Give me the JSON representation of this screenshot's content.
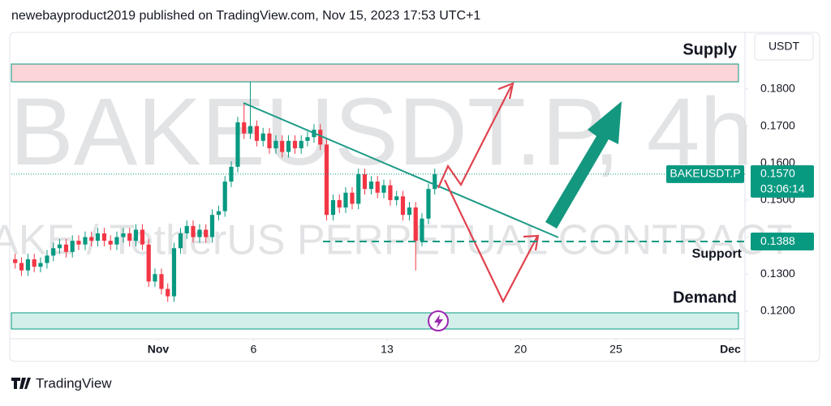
{
  "header": "newebayproduct2019 published on TradingView.com, Nov 15, 2023 17:53 UTC+1",
  "footer": "TradingView",
  "chart_data": {
    "type": "candlestick",
    "symbol_watermark": "BAKEUSDT.P, 4h",
    "description_watermark": "BAKE / TetherUS PERPETUAL CONTRACT",
    "currency": "USDT",
    "symbol_label": "BAKEUSDT.P",
    "countdown": "03:06:14",
    "last_price": {
      "value": 0.157,
      "label": "0.1570"
    },
    "support": 0.1388,
    "annotations": {
      "supply": "Supply",
      "support": "Support",
      "demand": "Demand"
    },
    "up_color": "#089981",
    "down_color": "#f23645",
    "grid": false,
    "xlim": [
      -6.7,
      31.64
    ],
    "xticks": [
      {
        "value": 1,
        "label": "Nov"
      },
      6,
      13,
      20,
      25,
      {
        "value": 31,
        "label": "Dec"
      }
    ],
    "ylim": [
      0.1121,
      0.1953
    ],
    "yticks": [
      {
        "value": 0.12,
        "label": "0.1200"
      },
      {
        "value": 0.13,
        "label": "0.1300"
      },
      {
        "value": 0.14,
        "label": "0.1400"
      },
      {
        "value": 0.15,
        "label": "0.1500"
      },
      {
        "value": 0.16,
        "label": "0.1600"
      },
      {
        "value": 0.17,
        "label": "0.1700"
      },
      {
        "value": 0.18,
        "label": "0.1800"
      }
    ],
    "x": [
      -6.5,
      -6.17,
      -5.83,
      -5.5,
      -5.17,
      -4.83,
      -4.5,
      -4.17,
      -3.83,
      -3.5,
      -3.17,
      -2.83,
      -2.5,
      -2.17,
      -1.83,
      -1.5,
      -1.17,
      -0.83,
      -0.5,
      -0.17,
      0.17,
      0.5,
      0.83,
      1.17,
      1.5,
      1.83,
      2.17,
      2.5,
      2.83,
      3.17,
      3.5,
      3.83,
      4.17,
      4.5,
      4.83,
      5.17,
      5.5,
      5.83,
      6.17,
      6.5,
      6.83,
      7.17,
      7.5,
      7.83,
      8.17,
      8.5,
      8.83,
      9.17,
      9.5,
      9.83,
      10.17,
      10.5,
      10.83,
      11.17,
      11.5,
      11.83,
      12.17,
      12.5,
      12.83,
      13.17,
      13.5,
      13.83,
      14.17,
      14.5,
      14.83,
      15.17,
      15.5
    ],
    "open": [
      0.134,
      0.133,
      0.131,
      0.134,
      0.132,
      0.133,
      0.135,
      0.137,
      0.138,
      0.136,
      0.139,
      0.138,
      0.14,
      0.139,
      0.141,
      0.139,
      0.138,
      0.14,
      0.141,
      0.139,
      0.142,
      0.138,
      0.128,
      0.13,
      0.126,
      0.124,
      0.137,
      0.141,
      0.143,
      0.14,
      0.142,
      0.14,
      0.146,
      0.147,
      0.155,
      0.159,
      0.171,
      0.168,
      0.17,
      0.166,
      0.168,
      0.164,
      0.166,
      0.163,
      0.166,
      0.164,
      0.166,
      0.167,
      0.169,
      0.165,
      0.146,
      0.15,
      0.148,
      0.152,
      0.149,
      0.157,
      0.153,
      0.155,
      0.152,
      0.154,
      0.15,
      0.151,
      0.146,
      0.148,
      0.139,
      0.145,
      0.153
    ],
    "high": [
      0.1355,
      0.1345,
      0.1355,
      0.1355,
      0.1345,
      0.1365,
      0.1385,
      0.1395,
      0.1395,
      0.1405,
      0.1405,
      0.1415,
      0.1415,
      0.1425,
      0.1425,
      0.1405,
      0.1415,
      0.1425,
      0.1425,
      0.1435,
      0.1435,
      0.1395,
      0.1315,
      0.1315,
      0.1275,
      0.1385,
      0.1425,
      0.1445,
      0.1445,
      0.1435,
      0.1435,
      0.1475,
      0.1485,
      0.1565,
      0.1605,
      0.1725,
      0.176,
      0.182,
      0.1715,
      0.1695,
      0.1695,
      0.1675,
      0.1675,
      0.1675,
      0.1675,
      0.1675,
      0.1685,
      0.1705,
      0.1705,
      0.1665,
      0.1515,
      0.1515,
      0.1535,
      0.1535,
      0.1585,
      0.1585,
      0.1565,
      0.1565,
      0.1555,
      0.1555,
      0.1525,
      0.1525,
      0.1495,
      0.1495,
      0.1465,
      0.1545,
      0.1585
    ],
    "low": [
      0.1315,
      0.1295,
      0.1295,
      0.1305,
      0.1305,
      0.1315,
      0.1335,
      0.1355,
      0.1345,
      0.1345,
      0.1365,
      0.1365,
      0.1375,
      0.1375,
      0.1375,
      0.1365,
      0.1365,
      0.1385,
      0.1375,
      0.1375,
      0.1365,
      0.1265,
      0.1265,
      0.1245,
      0.1225,
      0.1225,
      0.1355,
      0.1395,
      0.1385,
      0.1385,
      0.1385,
      0.1385,
      0.1445,
      0.1455,
      0.1535,
      0.1575,
      0.1665,
      0.1665,
      0.1645,
      0.1645,
      0.1625,
      0.1625,
      0.1615,
      0.1615,
      0.1625,
      0.1625,
      0.1645,
      0.1655,
      0.1635,
      0.1445,
      0.1445,
      0.1465,
      0.1465,
      0.1475,
      0.1475,
      0.1515,
      0.1515,
      0.1505,
      0.1505,
      0.1485,
      0.1485,
      0.1445,
      0.1445,
      0.131,
      0.1375,
      0.1435,
      0.1515
    ],
    "close": [
      0.133,
      0.131,
      0.134,
      0.132,
      0.133,
      0.135,
      0.137,
      0.138,
      0.136,
      0.139,
      0.138,
      0.14,
      0.139,
      0.141,
      0.139,
      0.138,
      0.14,
      0.141,
      0.139,
      0.142,
      0.138,
      0.128,
      0.13,
      0.126,
      0.124,
      0.137,
      0.141,
      0.143,
      0.14,
      0.142,
      0.14,
      0.146,
      0.147,
      0.155,
      0.159,
      0.171,
      0.168,
      0.17,
      0.166,
      0.168,
      0.164,
      0.166,
      0.163,
      0.166,
      0.164,
      0.166,
      0.167,
      0.169,
      0.165,
      0.146,
      0.15,
      0.148,
      0.152,
      0.149,
      0.157,
      0.153,
      0.155,
      0.152,
      0.154,
      0.15,
      0.151,
      0.146,
      0.148,
      0.139,
      0.145,
      0.153,
      0.157
    ]
  }
}
